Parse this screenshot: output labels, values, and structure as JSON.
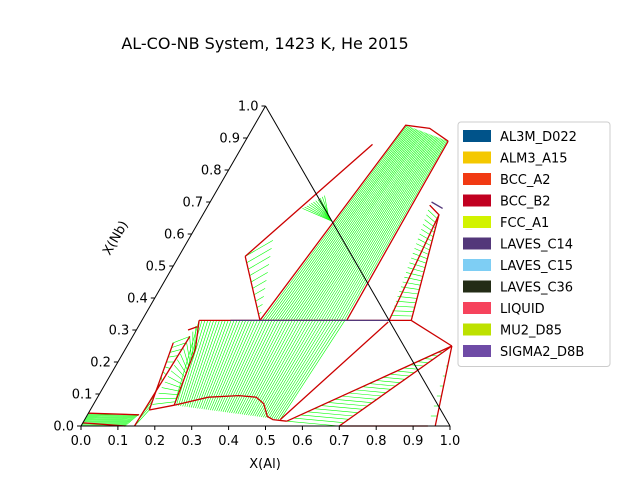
{
  "chart_data": {
    "type": "ternary-phase-diagram",
    "title": "AL-CO-NB System, 1423 K, He 2015",
    "xlabel": "X(Al)",
    "ylabel": "X(Nb)",
    "xlim": [
      0,
      1
    ],
    "ylim": [
      0,
      1
    ],
    "x_ticks": [
      "0.0",
      "0.1",
      "0.2",
      "0.3",
      "0.4",
      "0.5",
      "0.6",
      "0.7",
      "0.8",
      "0.9",
      "1.0"
    ],
    "y_ticks": [
      "0.0",
      "0.1",
      "0.2",
      "0.3",
      "0.4",
      "0.5",
      "0.6",
      "0.7",
      "0.8",
      "0.9",
      "1.0"
    ],
    "legend_position": "right",
    "legend": [
      {
        "name": "AL3M_D022",
        "color": "#00538a"
      },
      {
        "name": "ALM3_A15",
        "color": "#f4c800"
      },
      {
        "name": "BCC_A2",
        "color": "#f13a13"
      },
      {
        "name": "BCC_B2",
        "color": "#c10020"
      },
      {
        "name": "FCC_A1",
        "color": "#d2f300"
      },
      {
        "name": "LAVES_C14",
        "color": "#53377a"
      },
      {
        "name": "LAVES_C15",
        "color": "#7ecef4"
      },
      {
        "name": "LAVES_C36",
        "color": "#232c16"
      },
      {
        "name": "LIQUID",
        "color": "#f6435c"
      },
      {
        "name": "MU2_D85",
        "color": "#bde100"
      },
      {
        "name": "SIGMA2_D8B",
        "color": "#6f4ba6"
      }
    ],
    "boundary_color": "#cc0000",
    "tieline_color": "#00ff00",
    "phase_boundaries": [
      [
        [
          0.0,
          0.04
        ],
        [
          0.14,
          0.035
        ]
      ],
      [
        [
          0.0,
          0.01
        ],
        [
          0.12,
          0.0
        ]
      ],
      [
        [
          0.145,
          0.0
        ],
        [
          0.155,
          0.28
        ]
      ],
      [
        [
          0.12,
          0.26
        ],
        [
          0.16,
          0.05
        ]
      ],
      [
        [
          0.14,
          0.3
        ],
        [
          0.16,
          0.31
        ]
      ],
      [
        [
          0.16,
          0.05
        ],
        [
          0.22,
          0.065
        ]
      ],
      [
        [
          0.22,
          0.065
        ],
        [
          0.3,
          0.09
        ],
        [
          0.38,
          0.095
        ],
        [
          0.43,
          0.09
        ],
        [
          0.46,
          0.07
        ],
        [
          0.49,
          0.03
        ],
        [
          0.51,
          0.02
        ],
        [
          0.55,
          0.015
        ]
      ],
      [
        [
          0.19,
          0.24
        ],
        [
          0.22,
          0.065
        ]
      ],
      [
        [
          0.155,
          0.33
        ],
        [
          0.19,
          0.24
        ]
      ],
      [
        [
          0.155,
          0.33
        ],
        [
          0.73,
          0.33
        ]
      ],
      [
        [
          0.67,
          0.325
        ],
        [
          0.53,
          0.02
        ]
      ],
      [
        [
          0.73,
          0.33
        ],
        [
          0.88,
          0.25
        ]
      ],
      [
        [
          0.88,
          0.25
        ],
        [
          0.96,
          0.0
        ]
      ],
      [
        [
          0.88,
          0.25
        ],
        [
          0.55,
          0.015
        ]
      ],
      [
        [
          0.88,
          0.25
        ],
        [
          0.7,
          0.0
        ]
      ],
      [
        [
          0.7,
          0.0
        ],
        [
          0.94,
          0.0
        ]
      ],
      [
        [
          0.32,
          0.33
        ],
        [
          0.41,
          0.94
        ],
        [
          0.48,
          0.93
        ],
        [
          0.55,
          0.89
        ]
      ],
      [
        [
          0.55,
          0.89
        ],
        [
          0.555,
          0.33
        ]
      ],
      [
        [
          0.18,
          0.53
        ],
        [
          0.32,
          0.33
        ]
      ],
      [
        [
          0.18,
          0.53
        ],
        [
          0.35,
          0.88
        ]
      ],
      [
        [
          0.6,
          0.69
        ],
        [
          0.64,
          0.66
        ],
        [
          0.67,
          0.33
        ]
      ],
      [
        [
          0.64,
          0.66
        ],
        [
          0.73,
          0.33
        ]
      ]
    ],
    "tieline_regions": [
      {
        "from": [
          [
            0.0,
            0.04
          ],
          [
            0.0,
            0.0
          ]
        ],
        "to": [
          [
            0.14,
            0.035
          ],
          [
            0.12,
            0.0
          ]
        ],
        "count": 12
      },
      {
        "from": [
          [
            0.145,
            0.0
          ],
          [
            0.155,
            0.28
          ]
        ],
        "to": [
          [
            0.16,
            0.05
          ],
          [
            0.12,
            0.26
          ]
        ],
        "count": 14
      },
      {
        "from": [
          [
            0.19,
            0.24
          ],
          [
            0.22,
            0.065
          ]
        ],
        "to": [
          [
            0.155,
            0.33
          ],
          [
            0.16,
            0.05
          ]
        ],
        "count": 16
      },
      {
        "from": [
          [
            0.155,
            0.33
          ],
          [
            0.55,
            0.33
          ]
        ],
        "to": [
          [
            0.22,
            0.065
          ],
          [
            0.53,
            0.02
          ]
        ],
        "count": 50
      },
      {
        "from": [
          [
            0.32,
            0.33
          ],
          [
            0.555,
            0.33
          ]
        ],
        "to": [
          [
            0.41,
            0.94
          ],
          [
            0.55,
            0.89
          ]
        ],
        "count": 34
      },
      {
        "from": [
          [
            0.18,
            0.53
          ],
          [
            0.32,
            0.33
          ]
        ],
        "to": [
          [
            0.23,
            0.58
          ],
          [
            0.32,
            0.33
          ]
        ],
        "count": 10
      },
      {
        "from": [
          [
            0.6,
            0.69
          ],
          [
            0.67,
            0.33
          ]
        ],
        "to": [
          [
            0.64,
            0.66
          ],
          [
            0.73,
            0.33
          ]
        ],
        "count": 24
      },
      {
        "from": [
          [
            0.55,
            0.015
          ],
          [
            0.88,
            0.25
          ]
        ],
        "to": [
          [
            0.7,
            0.0
          ],
          [
            0.88,
            0.25
          ]
        ],
        "count": 24
      },
      {
        "from": [
          [
            0.88,
            0.25
          ],
          [
            0.96,
            0.0
          ]
        ],
        "to": [
          [
            0.88,
            0.25
          ],
          [
            0.94,
            0.0
          ]
        ],
        "count": 8
      },
      {
        "from": [
          [
            0.36,
            0.64
          ],
          [
            0.34,
            0.66
          ]
        ],
        "to": [
          [
            0.26,
            0.68
          ],
          [
            0.3,
            0.72
          ]
        ],
        "count": 10
      }
    ],
    "special_lines": [
      {
        "color": "#53377a",
        "points": [
          [
            0.6,
            0.7
          ],
          [
            0.64,
            0.68
          ]
        ]
      },
      {
        "color": "#53377a",
        "points": [
          [
            0.24,
            0.33
          ],
          [
            0.67,
            0.33
          ]
        ]
      }
    ]
  }
}
